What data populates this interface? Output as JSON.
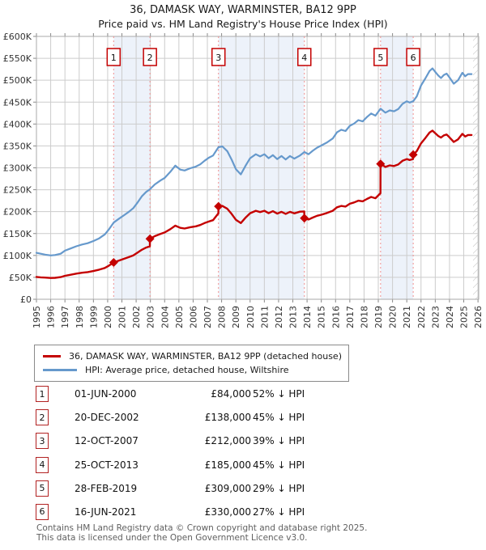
{
  "title": "36, DAMASK WAY, WARMINSTER, BA12 9PP",
  "subtitle": "Price paid vs. HM Land Registry's House Price Index (HPI)",
  "legend": {
    "series1": "36, DAMASK WAY, WARMINSTER, BA12 9PP (detached house)",
    "series2": "HPI: Average price, detached house, Wiltshire"
  },
  "footer": {
    "line1": "Contains HM Land Registry data © Crown copyright and database right 2025.",
    "line2": "This data is licensed under the Open Government Licence v3.0."
  },
  "colors": {
    "property_line": "#c40000",
    "hpi_line": "#6699cc",
    "sale_dash": "#f08f8f",
    "band_fill": "#edf2fa",
    "grid": "#cccccc",
    "plot_border": "#aaaaaa",
    "tick": "#888888",
    "hatch": "#bbbbbb",
    "flag_border": "#c40000"
  },
  "chart_data": {
    "type": "line",
    "title": "36, DAMASK WAY, WARMINSTER, BA12 9PP",
    "subtitle": "Price paid vs. HM Land Registry's House Price Index (HPI)",
    "x_axis": {
      "min": 1995,
      "max": 2026.05,
      "ticks": [
        1995,
        1996,
        1997,
        1998,
        1999,
        2000,
        2001,
        2002,
        2003,
        2004,
        2005,
        2006,
        2007,
        2008,
        2009,
        2010,
        2011,
        2012,
        2013,
        2014,
        2015,
        2016,
        2017,
        2018,
        2019,
        2020,
        2021,
        2022,
        2023,
        2024,
        2025,
        2026
      ]
    },
    "y_axis": {
      "min": 0,
      "max": 600000,
      "tick_step": 50000,
      "tick_labels": [
        "£0",
        "£50K",
        "£100K",
        "£150K",
        "£200K",
        "£250K",
        "£300K",
        "£350K",
        "£400K",
        "£450K",
        "£500K",
        "£550K",
        "£600K"
      ]
    },
    "grid": true,
    "legend_position": "below",
    "sale_bands": [
      [
        2000.42,
        2002.97
      ],
      [
        2007.78,
        2013.81
      ],
      [
        2019.16,
        2021.45
      ]
    ],
    "future_hatch_start": 2025.65,
    "series": [
      {
        "name": "HPI: Average price, detached house, Wiltshire",
        "color": "#6699cc",
        "width": 2.2,
        "points": [
          [
            1995.0,
            106000
          ],
          [
            1995.3,
            104000
          ],
          [
            1995.6,
            102000
          ],
          [
            1996.0,
            100000
          ],
          [
            1996.3,
            101000
          ],
          [
            1996.7,
            104000
          ],
          [
            1997.0,
            111000
          ],
          [
            1997.4,
            116000
          ],
          [
            1997.8,
            121000
          ],
          [
            1998.2,
            125000
          ],
          [
            1998.6,
            128000
          ],
          [
            1999.0,
            133000
          ],
          [
            1999.4,
            139000
          ],
          [
            1999.8,
            148000
          ],
          [
            2000.1,
            160000
          ],
          [
            2000.42,
            175000
          ],
          [
            2000.8,
            184000
          ],
          [
            2001.2,
            193000
          ],
          [
            2001.5,
            200000
          ],
          [
            2001.8,
            208000
          ],
          [
            2002.1,
            221000
          ],
          [
            2002.4,
            235000
          ],
          [
            2002.7,
            245000
          ],
          [
            2002.97,
            251000
          ],
          [
            2003.3,
            262000
          ],
          [
            2003.7,
            271000
          ],
          [
            2004.0,
            277000
          ],
          [
            2004.4,
            291000
          ],
          [
            2004.75,
            305000
          ],
          [
            2005.1,
            296000
          ],
          [
            2005.4,
            294000
          ],
          [
            2005.8,
            299000
          ],
          [
            2006.2,
            303000
          ],
          [
            2006.5,
            308000
          ],
          [
            2006.8,
            316000
          ],
          [
            2007.1,
            323000
          ],
          [
            2007.4,
            328000
          ],
          [
            2007.78,
            347000
          ],
          [
            2008.05,
            349000
          ],
          [
            2008.4,
            338000
          ],
          [
            2008.7,
            319000
          ],
          [
            2009.0,
            297000
          ],
          [
            2009.35,
            285000
          ],
          [
            2009.7,
            306000
          ],
          [
            2010.0,
            322000
          ],
          [
            2010.4,
            331000
          ],
          [
            2010.7,
            326000
          ],
          [
            2011.0,
            331000
          ],
          [
            2011.3,
            322000
          ],
          [
            2011.6,
            329000
          ],
          [
            2011.9,
            320000
          ],
          [
            2012.2,
            327000
          ],
          [
            2012.5,
            319000
          ],
          [
            2012.8,
            327000
          ],
          [
            2013.1,
            321000
          ],
          [
            2013.5,
            328000
          ],
          [
            2013.81,
            336000
          ],
          [
            2014.1,
            331000
          ],
          [
            2014.4,
            339000
          ],
          [
            2014.7,
            346000
          ],
          [
            2015.0,
            351000
          ],
          [
            2015.4,
            358000
          ],
          [
            2015.8,
            367000
          ],
          [
            2016.1,
            381000
          ],
          [
            2016.4,
            387000
          ],
          [
            2016.7,
            384000
          ],
          [
            2017.0,
            396000
          ],
          [
            2017.3,
            401000
          ],
          [
            2017.6,
            409000
          ],
          [
            2017.9,
            406000
          ],
          [
            2018.2,
            416000
          ],
          [
            2018.5,
            424000
          ],
          [
            2018.8,
            419000
          ],
          [
            2019.16,
            435000
          ],
          [
            2019.5,
            426000
          ],
          [
            2019.8,
            431000
          ],
          [
            2020.1,
            429000
          ],
          [
            2020.4,
            434000
          ],
          [
            2020.7,
            446000
          ],
          [
            2021.0,
            452000
          ],
          [
            2021.2,
            449000
          ],
          [
            2021.45,
            452000
          ],
          [
            2021.7,
            463000
          ],
          [
            2022.0,
            488000
          ],
          [
            2022.3,
            504000
          ],
          [
            2022.6,
            521000
          ],
          [
            2022.8,
            527000
          ],
          [
            2023.0,
            519000
          ],
          [
            2023.2,
            511000
          ],
          [
            2023.4,
            505000
          ],
          [
            2023.6,
            512000
          ],
          [
            2023.8,
            515000
          ],
          [
            2024.0,
            506000
          ],
          [
            2024.3,
            492000
          ],
          [
            2024.6,
            500000
          ],
          [
            2024.9,
            517000
          ],
          [
            2025.1,
            509000
          ],
          [
            2025.3,
            514000
          ],
          [
            2025.55,
            514000
          ]
        ]
      },
      {
        "name": "36, DAMASK WAY, WARMINSTER, BA12 9PP (detached house)",
        "color": "#c40000",
        "width": 2.4,
        "points": [
          [
            1995.0,
            51000
          ],
          [
            1995.3,
            50000
          ],
          [
            1995.6,
            49500
          ],
          [
            1996.0,
            48500
          ],
          [
            1996.3,
            49000
          ],
          [
            1996.7,
            50500
          ],
          [
            1997.0,
            53500
          ],
          [
            1997.4,
            56000
          ],
          [
            1997.8,
            58500
          ],
          [
            1998.2,
            60500
          ],
          [
            1998.6,
            62000
          ],
          [
            1999.0,
            64500
          ],
          [
            1999.4,
            67500
          ],
          [
            1999.8,
            71500
          ],
          [
            2000.1,
            77000
          ],
          [
            2000.42,
            84000
          ],
          [
            2000.8,
            88500
          ],
          [
            2001.2,
            93000
          ],
          [
            2001.5,
            96500
          ],
          [
            2001.8,
            100000
          ],
          [
            2002.1,
            106500
          ],
          [
            2002.4,
            113000
          ],
          [
            2002.7,
            118000
          ],
          [
            2002.96,
            121000
          ],
          [
            2002.97,
            138000
          ],
          [
            2003.3,
            144000
          ],
          [
            2003.7,
            149000
          ],
          [
            2004.0,
            152500
          ],
          [
            2004.4,
            160000
          ],
          [
            2004.75,
            168000
          ],
          [
            2005.1,
            163000
          ],
          [
            2005.4,
            161500
          ],
          [
            2005.8,
            164500
          ],
          [
            2006.2,
            166500
          ],
          [
            2006.5,
            169500
          ],
          [
            2006.8,
            174000
          ],
          [
            2007.1,
            177500
          ],
          [
            2007.4,
            180500
          ],
          [
            2007.77,
            196000
          ],
          [
            2007.78,
            212000
          ],
          [
            2008.05,
            213000
          ],
          [
            2008.4,
            206500
          ],
          [
            2008.7,
            195000
          ],
          [
            2009.0,
            181500
          ],
          [
            2009.35,
            174000
          ],
          [
            2009.7,
            187000
          ],
          [
            2010.0,
            196500
          ],
          [
            2010.4,
            202000
          ],
          [
            2010.7,
            199000
          ],
          [
            2011.0,
            202000
          ],
          [
            2011.3,
            196500
          ],
          [
            2011.6,
            201000
          ],
          [
            2011.9,
            195500
          ],
          [
            2012.2,
            199500
          ],
          [
            2012.5,
            195000
          ],
          [
            2012.8,
            199500
          ],
          [
            2013.1,
            196000
          ],
          [
            2013.5,
            200000
          ],
          [
            2013.8,
            200500
          ],
          [
            2013.81,
            185000
          ],
          [
            2014.1,
            182000
          ],
          [
            2014.4,
            186500
          ],
          [
            2014.7,
            190500
          ],
          [
            2015.0,
            193000
          ],
          [
            2015.4,
            197000
          ],
          [
            2015.8,
            202000
          ],
          [
            2016.1,
            210000
          ],
          [
            2016.4,
            213000
          ],
          [
            2016.7,
            211500
          ],
          [
            2017.0,
            218000
          ],
          [
            2017.3,
            221000
          ],
          [
            2017.6,
            225000
          ],
          [
            2017.9,
            223500
          ],
          [
            2018.2,
            229000
          ],
          [
            2018.5,
            233500
          ],
          [
            2018.8,
            230500
          ],
          [
            2019.15,
            242000
          ],
          [
            2019.16,
            309000
          ],
          [
            2019.5,
            302000
          ],
          [
            2019.8,
            305500
          ],
          [
            2020.1,
            304000
          ],
          [
            2020.4,
            307500
          ],
          [
            2020.7,
            316000
          ],
          [
            2021.0,
            320000
          ],
          [
            2021.2,
            318000
          ],
          [
            2021.44,
            320000
          ],
          [
            2021.45,
            330000
          ],
          [
            2021.7,
            338000
          ],
          [
            2022.0,
            356000
          ],
          [
            2022.3,
            368000
          ],
          [
            2022.6,
            380500
          ],
          [
            2022.8,
            385000
          ],
          [
            2023.0,
            379000
          ],
          [
            2023.2,
            373000
          ],
          [
            2023.4,
            369000
          ],
          [
            2023.6,
            374000
          ],
          [
            2023.8,
            376000
          ],
          [
            2024.0,
            369500
          ],
          [
            2024.3,
            359000
          ],
          [
            2024.6,
            365000
          ],
          [
            2024.9,
            377500
          ],
          [
            2025.1,
            371500
          ],
          [
            2025.3,
            375000
          ],
          [
            2025.55,
            375000
          ]
        ]
      }
    ],
    "sales": [
      {
        "n": "1",
        "date": "01-JUN-2000",
        "year": 2000.42,
        "price": 84000,
        "price_label": "£84,000",
        "vs_hpi": "52% ↓ HPI"
      },
      {
        "n": "2",
        "date": "20-DEC-2002",
        "year": 2002.97,
        "price": 138000,
        "price_label": "£138,000",
        "vs_hpi": "45% ↓ HPI"
      },
      {
        "n": "3",
        "date": "12-OCT-2007",
        "year": 2007.78,
        "price": 212000,
        "price_label": "£212,000",
        "vs_hpi": "39% ↓ HPI"
      },
      {
        "n": "4",
        "date": "25-OCT-2013",
        "year": 2013.81,
        "price": 185000,
        "price_label": "£185,000",
        "vs_hpi": "45% ↓ HPI"
      },
      {
        "n": "5",
        "date": "28-FEB-2019",
        "year": 2019.16,
        "price": 309000,
        "price_label": "£309,000",
        "vs_hpi": "29% ↓ HPI"
      },
      {
        "n": "6",
        "date": "16-JUN-2021",
        "year": 2021.45,
        "price": 330000,
        "price_label": "£330,000",
        "vs_hpi": "27% ↓ HPI"
      }
    ]
  }
}
